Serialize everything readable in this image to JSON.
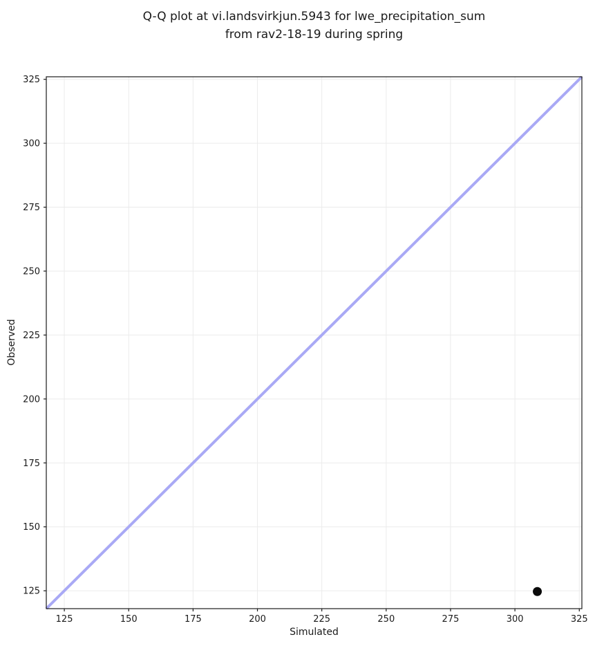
{
  "figure": {
    "title_line1": "Q-Q plot at vi.landsvirkjun.5943 for lwe_precipitation_sum",
    "title_line2": "from rav2-18-19 during spring",
    "xlabel": "Simulated",
    "ylabel": "Observed"
  },
  "chart_data": {
    "type": "scatter",
    "title": "Q-Q plot at vi.landsvirkjun.5943 for lwe_precipitation_sum\nfrom rav2-18-19 during spring",
    "xlabel": "Simulated",
    "ylabel": "Observed",
    "xlim": [
      118,
      326
    ],
    "ylim": [
      118,
      326
    ],
    "xticks": [
      125,
      150,
      175,
      200,
      225,
      250,
      275,
      300,
      325
    ],
    "yticks": [
      125,
      150,
      175,
      200,
      225,
      250,
      275,
      300,
      325
    ],
    "grid": true,
    "legend": "none",
    "series": [
      {
        "name": "identity-line",
        "type": "line",
        "color": "#a9a9f5",
        "linewidth": 4,
        "x": [
          118,
          326
        ],
        "y": [
          118,
          326
        ]
      },
      {
        "name": "qq-points",
        "type": "scatter",
        "color": "#0a0a0a",
        "marker_diameter": 13,
        "points": [
          [
            308.7,
            124.7
          ]
        ]
      }
    ],
    "style": {
      "grid_color": "#ebebeb",
      "spine_color": "#1a1a1a",
      "tick_color": "#1a1a1a",
      "text_color": "#1a1a1a",
      "background": "#ffffff",
      "tick_font_size": 13,
      "tick_length": 4
    }
  }
}
